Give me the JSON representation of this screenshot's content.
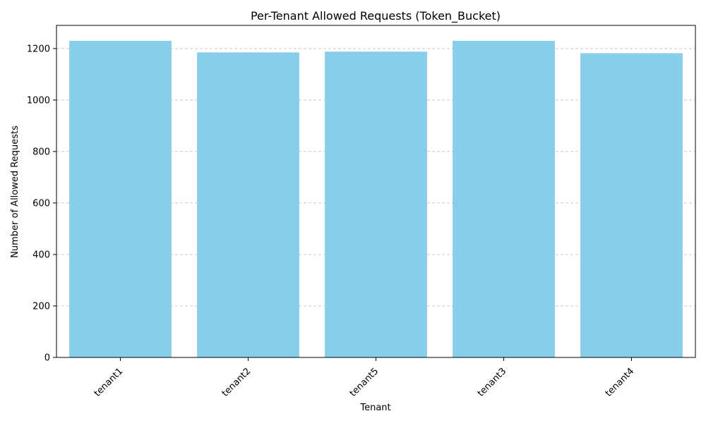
{
  "chart_data": {
    "type": "bar",
    "title": "Per-Tenant Allowed Requests (Token_Bucket)",
    "xlabel": "Tenant",
    "ylabel": "Number of Allowed Requests",
    "categories": [
      "tenant1",
      "tenant2",
      "tenant5",
      "tenant3",
      "tenant4"
    ],
    "values": [
      1230,
      1185,
      1188,
      1230,
      1182
    ],
    "ylim": [
      0,
      1290
    ],
    "yticks": [
      0,
      200,
      400,
      600,
      800,
      1000,
      1200
    ],
    "grid": "y-dashed",
    "bar_color": "#87CEEB",
    "grid_color": "#c8c8c8"
  }
}
